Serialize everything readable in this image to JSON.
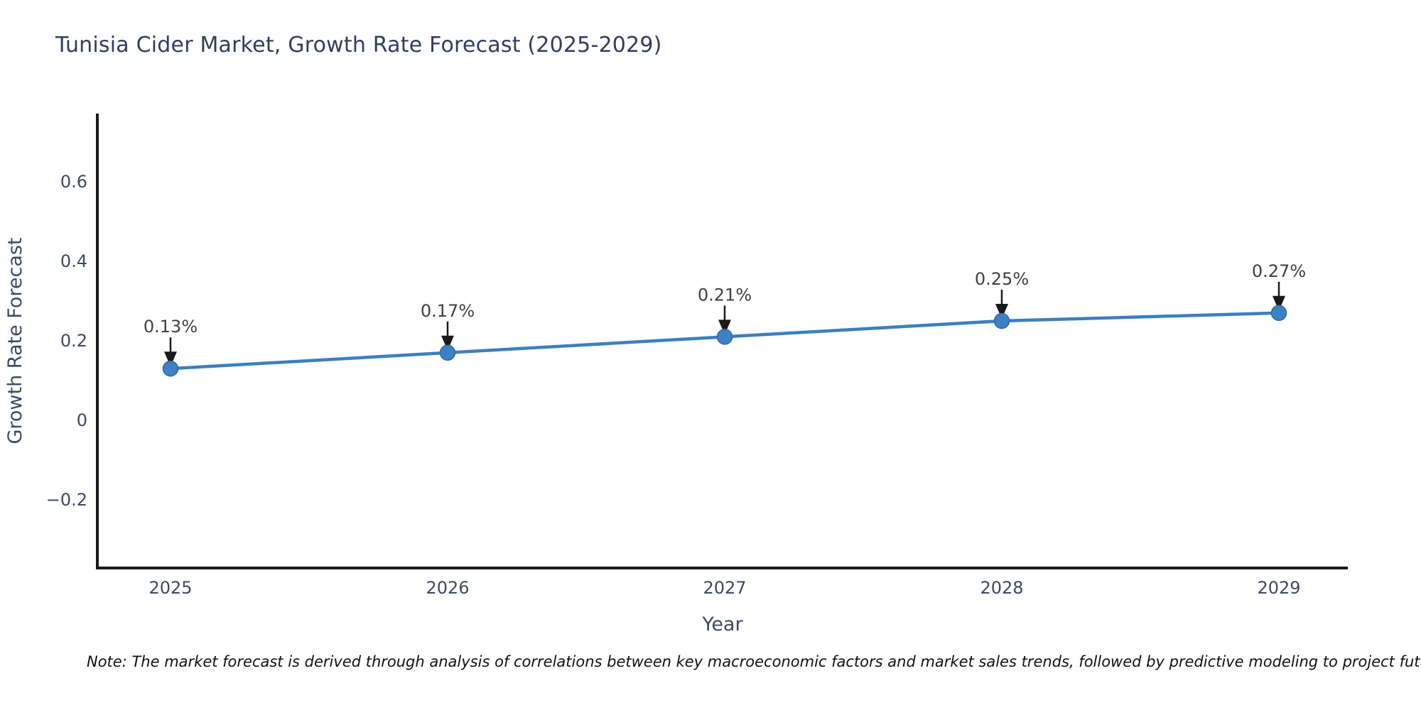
{
  "chart_data": {
    "type": "line",
    "title": "Tunisia Cider Market, Growth Rate Forecast (2025-2029)",
    "xlabel": "Year",
    "ylabel": "Growth Rate Forecast",
    "x": [
      2025,
      2026,
      2027,
      2028,
      2029
    ],
    "values": [
      0.13,
      0.17,
      0.21,
      0.25,
      0.27
    ],
    "point_labels": [
      "0.13%",
      "0.17%",
      "0.21%",
      "0.25%",
      "0.27%"
    ],
    "xtick_labels": [
      "2025",
      "2026",
      "2027",
      "2028",
      "2029"
    ],
    "yticks": [
      0.6,
      0.4,
      0.2,
      0,
      -0.2
    ],
    "ytick_labels": [
      "0.6",
      "0.4",
      "0.2",
      "0",
      "−0.2"
    ],
    "ylim": [
      -0.37,
      0.77
    ],
    "grid": false,
    "legend": false,
    "colors": {
      "line": "#3d7fbf",
      "marker_fill": "#3e80c4",
      "marker_edge": "#2d6aa3",
      "axis": "#1a1a1a",
      "arrow": "#1a1a1a",
      "annotation_text": "#3f3f3f",
      "tick_text": "#3c4a61",
      "title_text": "#2f3f5c"
    }
  },
  "note": {
    "text": "Note: The market forecast is derived through analysis of correlations between key macroeconomic factors and market sales trends, followed by predictive modeling to project future sales."
  }
}
